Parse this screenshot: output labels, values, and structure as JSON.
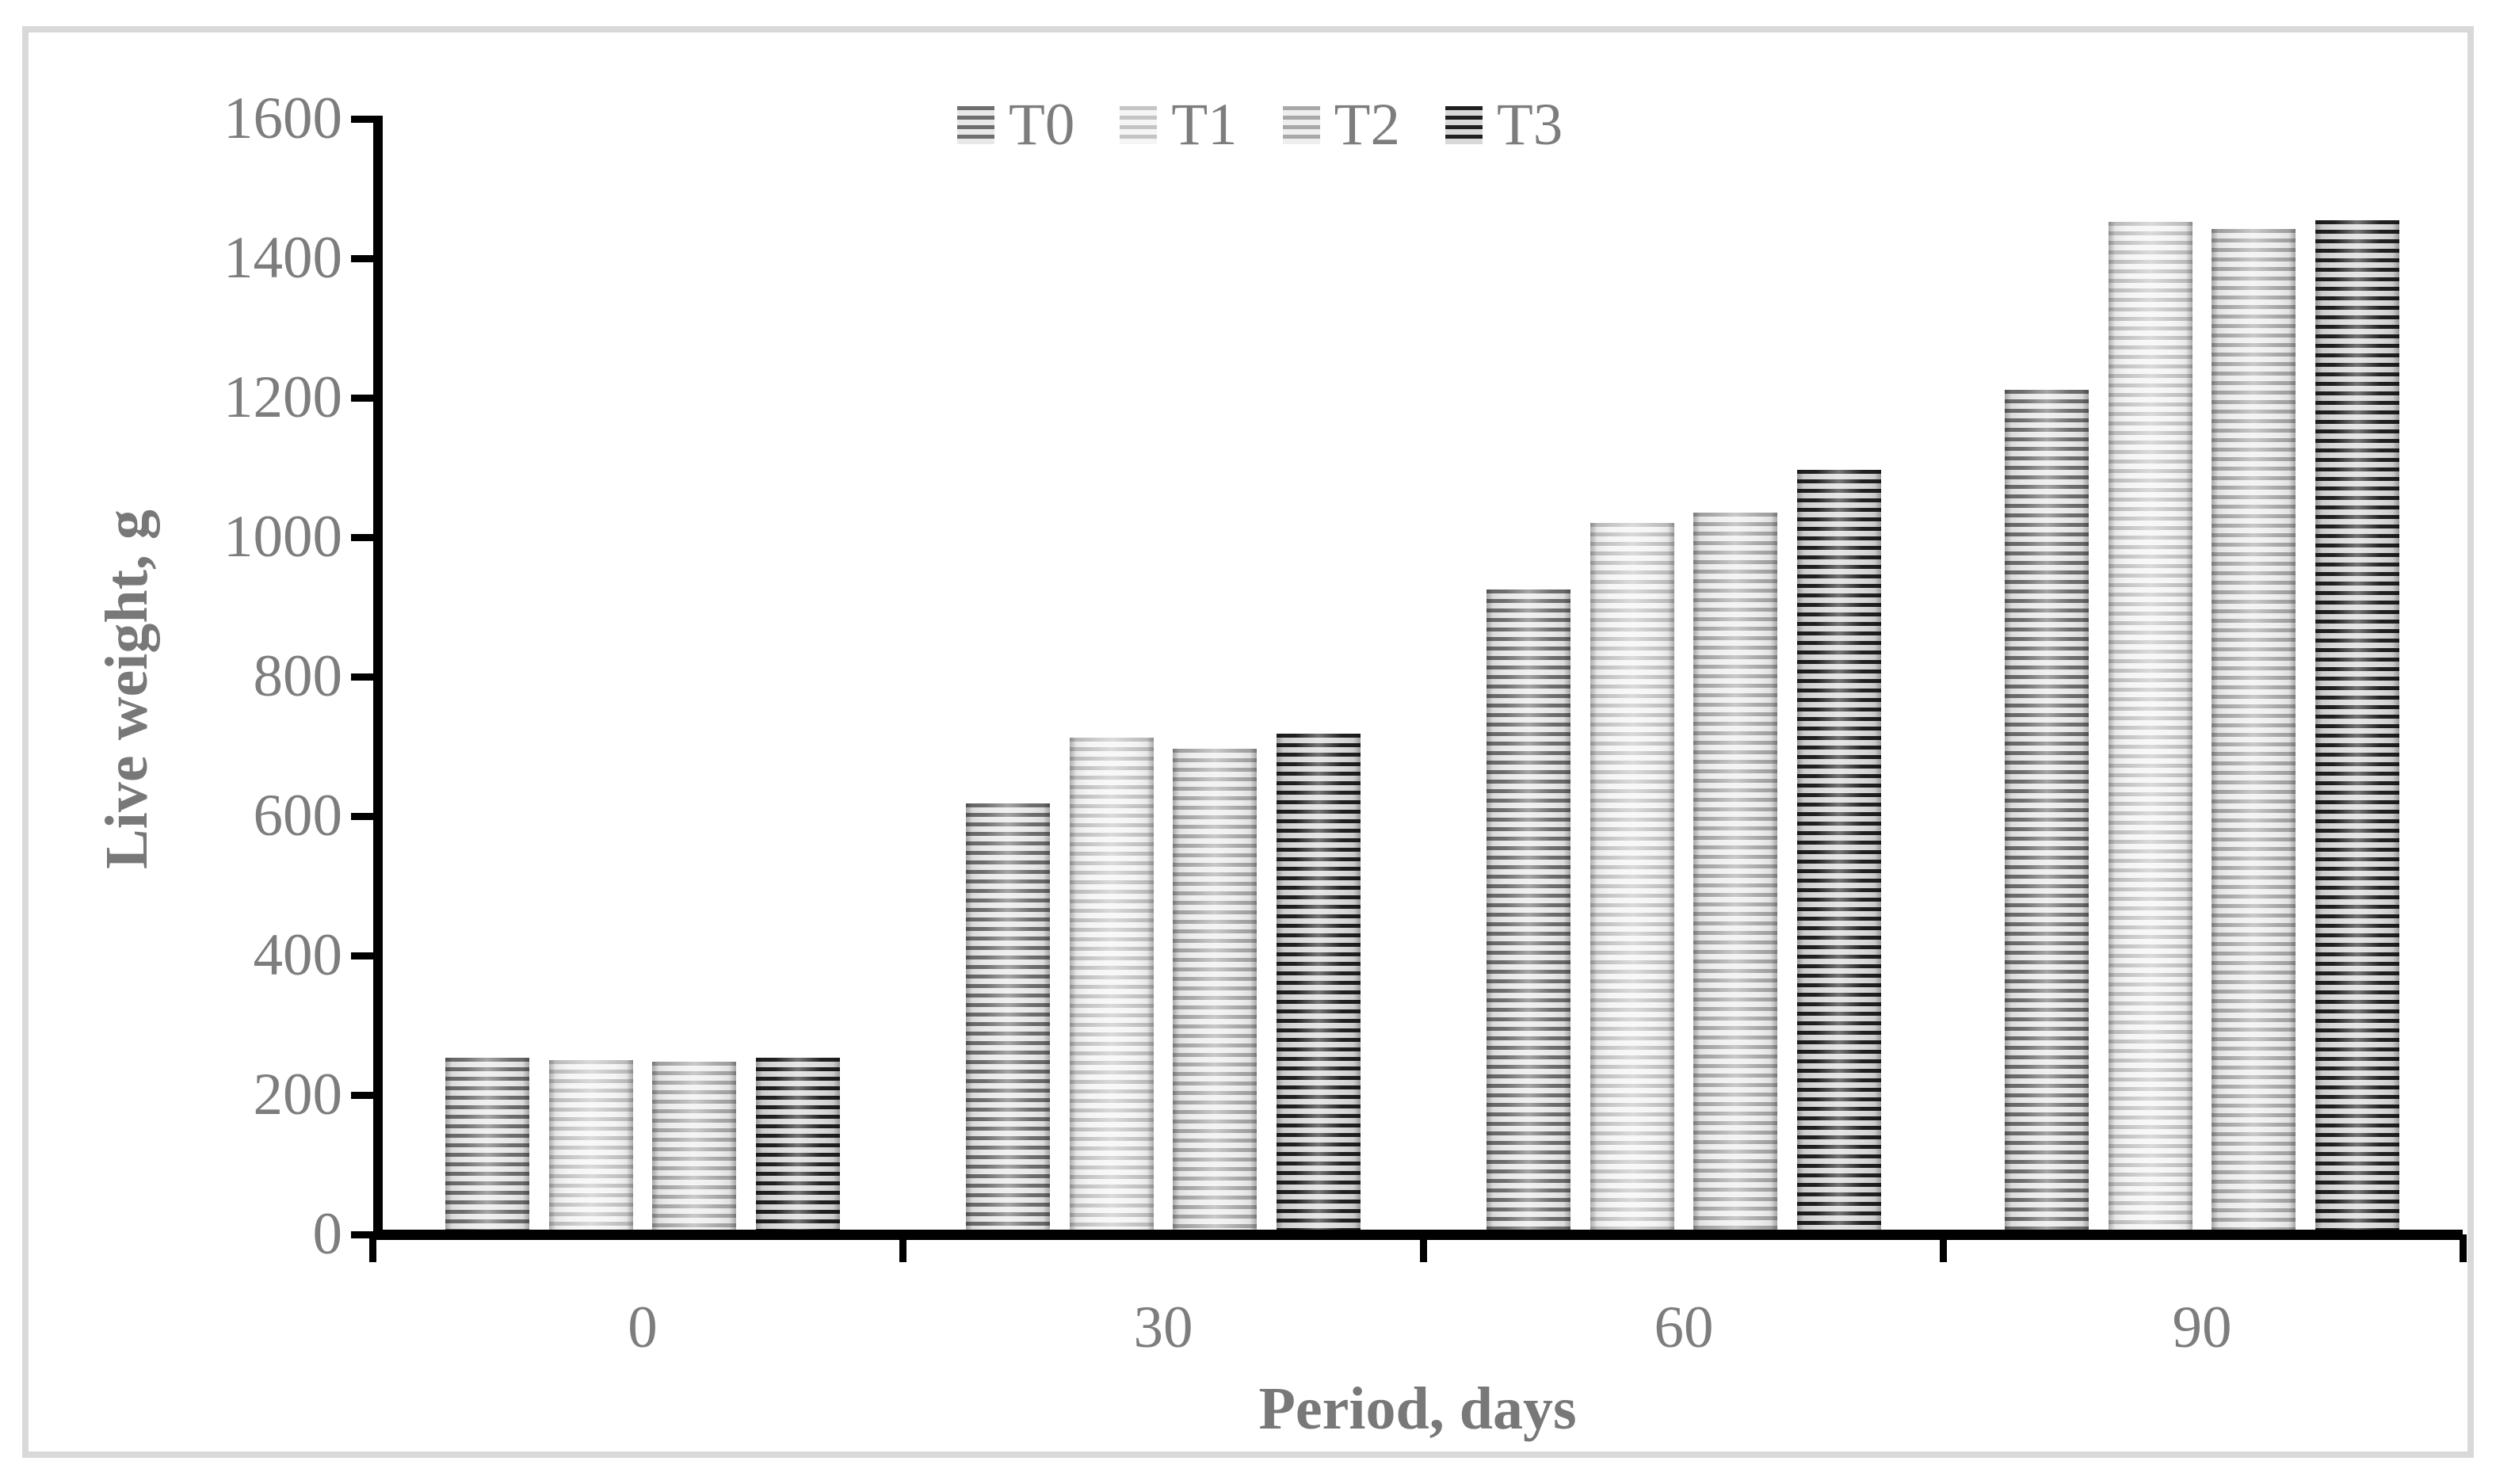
{
  "figure": {
    "border_color": "#d9d9d9",
    "background": "#ffffff",
    "axis_color": "#000000",
    "label_color": "#7d7d7d"
  },
  "chart_data": {
    "type": "bar",
    "title": "",
    "xlabel": "Period, days",
    "ylabel": "Live weight, g",
    "categories": [
      "0",
      "30",
      "60",
      "90"
    ],
    "series": [
      {
        "name": "T0",
        "values": [
          253,
          618,
          925,
          1211
        ],
        "stripe_color": "#6e6e6e",
        "fill_color": "#e8e8e8"
      },
      {
        "name": "T1",
        "values": [
          250,
          713,
          1020,
          1452
        ],
        "stripe_color": "#c4c4c4",
        "fill_color": "#f5f5f5"
      },
      {
        "name": "T2",
        "values": [
          248,
          697,
          1035,
          1442
        ],
        "stripe_color": "#a8a8a8",
        "fill_color": "#eeeeee"
      },
      {
        "name": "T3",
        "values": [
          253,
          718,
          1097,
          1454
        ],
        "stripe_color": "#202020",
        "fill_color": "#d8d8d8"
      }
    ],
    "ylim": [
      0,
      1600
    ],
    "ytick_step": 200,
    "ytick_labels": [
      "0",
      "200",
      "400",
      "600",
      "800",
      "1000",
      "1200",
      "1400",
      "1600"
    ],
    "legend_entries": [
      "T0",
      "T1",
      "T2",
      "T3"
    ],
    "legend_position": "top-center",
    "grid": false,
    "bar_pattern": "horizontal-stripes"
  }
}
